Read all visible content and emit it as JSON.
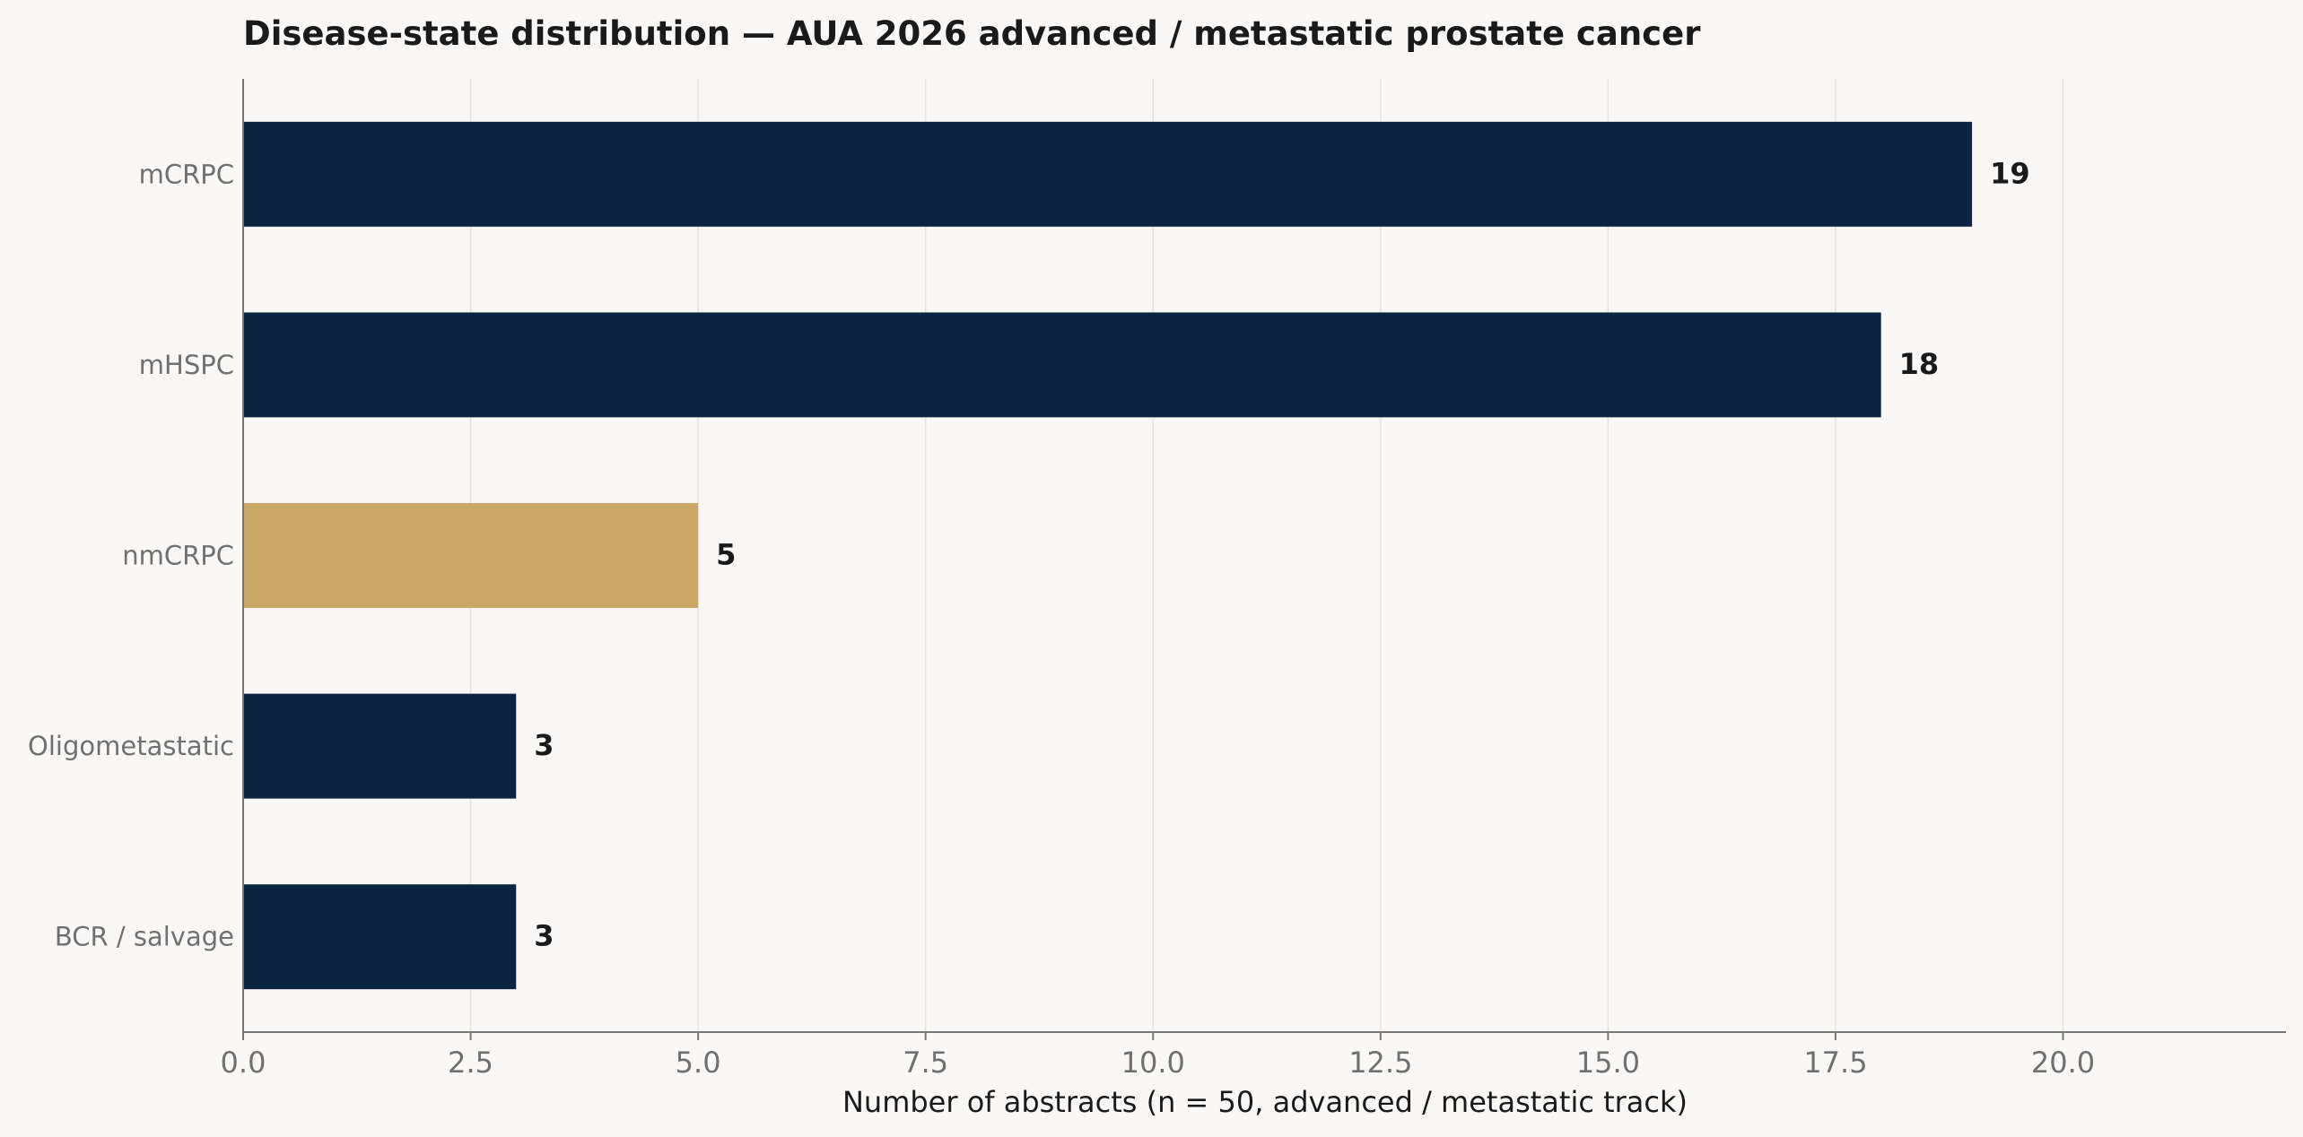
{
  "chart_data": {
    "type": "bar",
    "orientation": "horizontal",
    "title": "Disease-state distribution — AUA 2026 advanced / metastatic prostate cancer",
    "xlabel": "Number of abstracts (n = 50, advanced / metastatic track)",
    "ylabel": "",
    "categories": [
      "mCRPC",
      "mHSPC",
      "nmCRPC",
      "Oligometastatic",
      "BCR / salvage"
    ],
    "values": [
      19,
      18,
      5,
      3,
      3
    ],
    "value_labels": [
      "19",
      "18",
      "5",
      "3",
      "3"
    ],
    "bar_colors": [
      "#0b2540",
      "#0b2540",
      "#c8a864",
      "#0b2540",
      "#0b2540"
    ],
    "xlim": [
      0,
      22.45
    ],
    "xticks": [
      0,
      2.5,
      5,
      7.5,
      10,
      12.5,
      15,
      17.5,
      20
    ],
    "xtick_labels": [
      "0.0",
      "2.5",
      "5.0",
      "7.5",
      "10.0",
      "12.5",
      "15.0",
      "17.5",
      "20.0"
    ],
    "grid": "vertical",
    "legend": "none"
  },
  "colors": {
    "background": "#f9f8f6",
    "primary_bar": "#0b2540",
    "highlight_bar": "#c8a864",
    "text_dark": "#1a1a1a",
    "text_muted": "#707070",
    "grid": "#e6e4e1",
    "axis": "#777777"
  }
}
